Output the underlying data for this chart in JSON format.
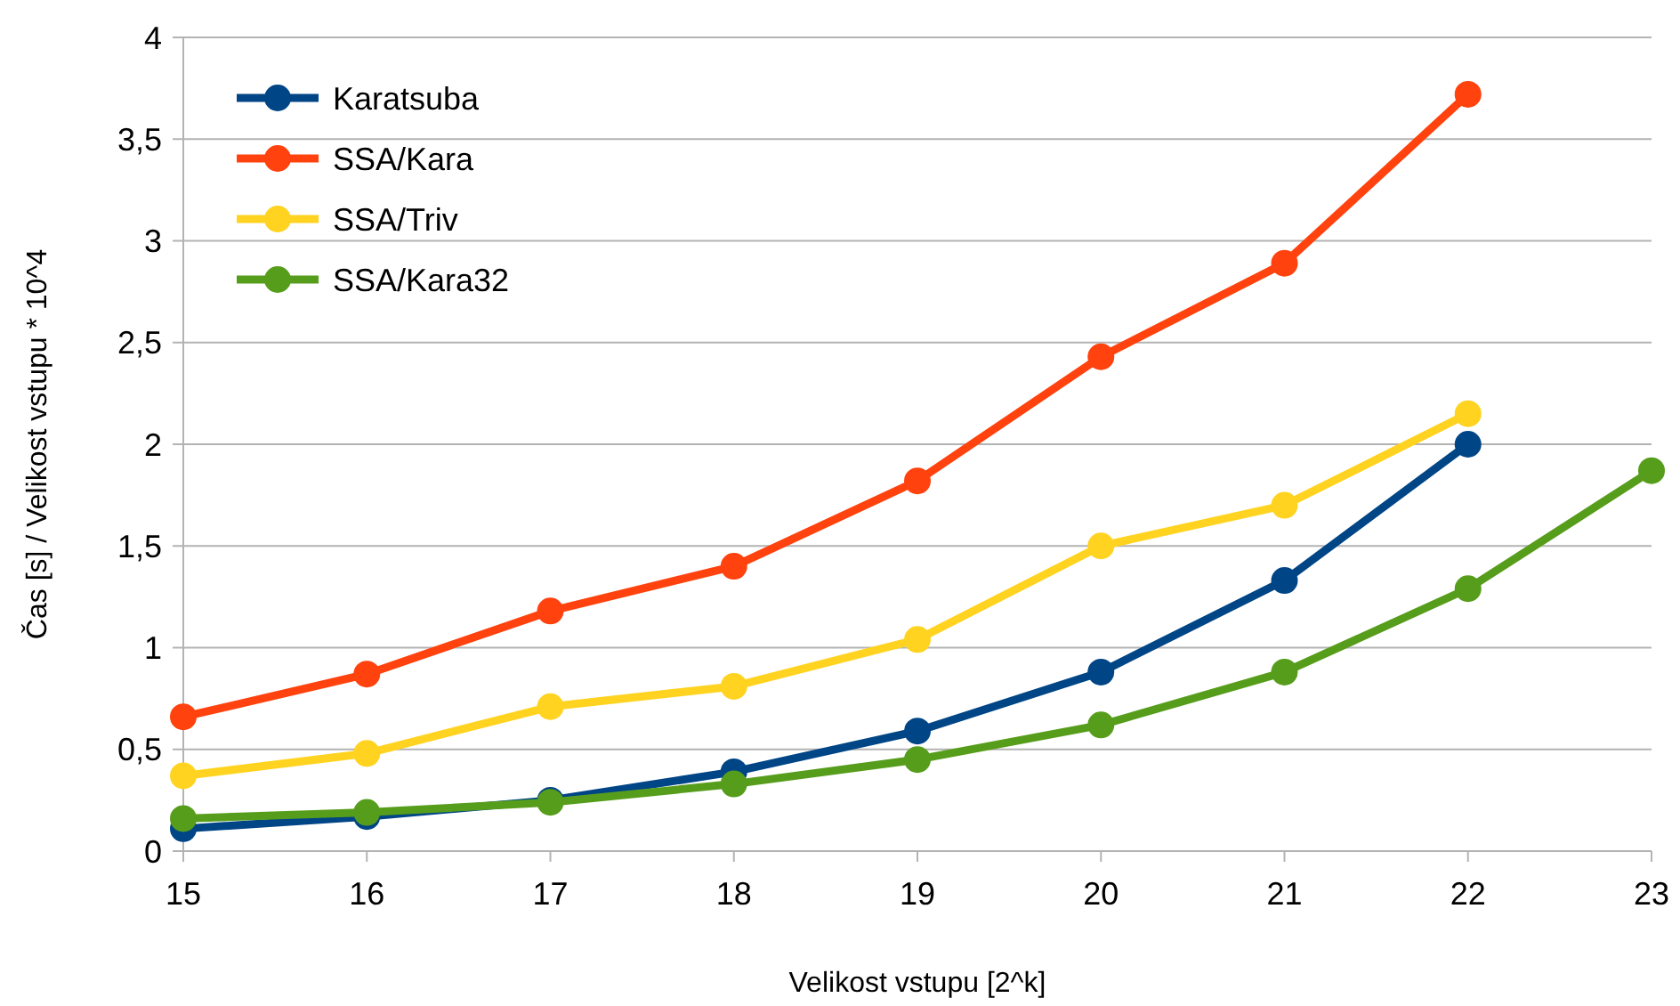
{
  "chart_data": {
    "type": "line",
    "xlabel": "Velikost vstupu [2^k]",
    "ylabel": "Čas [s] / Velikost vstupu * 10^4",
    "x": [
      15,
      16,
      17,
      18,
      19,
      20,
      21,
      22,
      23
    ],
    "xlim": [
      15,
      23
    ],
    "xticks": [
      15,
      16,
      17,
      18,
      19,
      20,
      21,
      22,
      23
    ],
    "ylim": [
      0,
      4
    ],
    "yticks": [
      0,
      {
        "value": 0.5,
        "label": "0,5"
      },
      1,
      {
        "value": 1.5,
        "label": "1,5"
      },
      2,
      {
        "value": 2.5,
        "label": "2,5"
      },
      3,
      {
        "value": 3.5,
        "label": "3,5"
      },
      4
    ],
    "grid": "y",
    "legend": "top left",
    "marker": "circle",
    "line_style": "solid",
    "series": [
      {
        "name": "Karatsuba",
        "color": "#004586",
        "values": [
          0.11,
          0.17,
          0.25,
          0.39,
          0.59,
          0.88,
          1.33,
          2.0,
          null
        ]
      },
      {
        "name": "SSA/Kara",
        "color": "#ff420e",
        "values": [
          0.66,
          0.87,
          1.18,
          1.4,
          1.82,
          2.43,
          2.89,
          3.72,
          null
        ]
      },
      {
        "name": "SSA/Triv",
        "color": "#ffd320",
        "values": [
          0.37,
          0.48,
          0.71,
          0.81,
          1.04,
          1.5,
          1.7,
          2.15,
          null
        ]
      },
      {
        "name": "SSA/Kara32",
        "color": "#579d1c",
        "values": [
          0.16,
          0.19,
          0.24,
          0.33,
          0.45,
          0.62,
          0.88,
          1.29,
          1.87
        ]
      }
    ]
  }
}
